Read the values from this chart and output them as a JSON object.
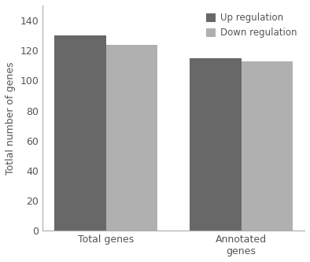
{
  "categories": [
    "Total genes",
    "Annotated\ngenes"
  ],
  "up_regulation": [
    130,
    115
  ],
  "down_regulation": [
    124,
    113
  ],
  "up_color": "#686868",
  "down_color": "#b0b0b0",
  "ylabel": "Totlal number of genes",
  "ylim": [
    0,
    150
  ],
  "yticks": [
    0,
    20,
    40,
    60,
    80,
    100,
    120,
    140
  ],
  "legend_up": "Up regulation",
  "legend_down": "Down regulation",
  "bar_width": 0.38,
  "background_color": "#ffffff",
  "figure_bg": "#ffffff",
  "spine_color": "#aaaaaa",
  "tick_color": "#555555",
  "label_color": "#555555"
}
